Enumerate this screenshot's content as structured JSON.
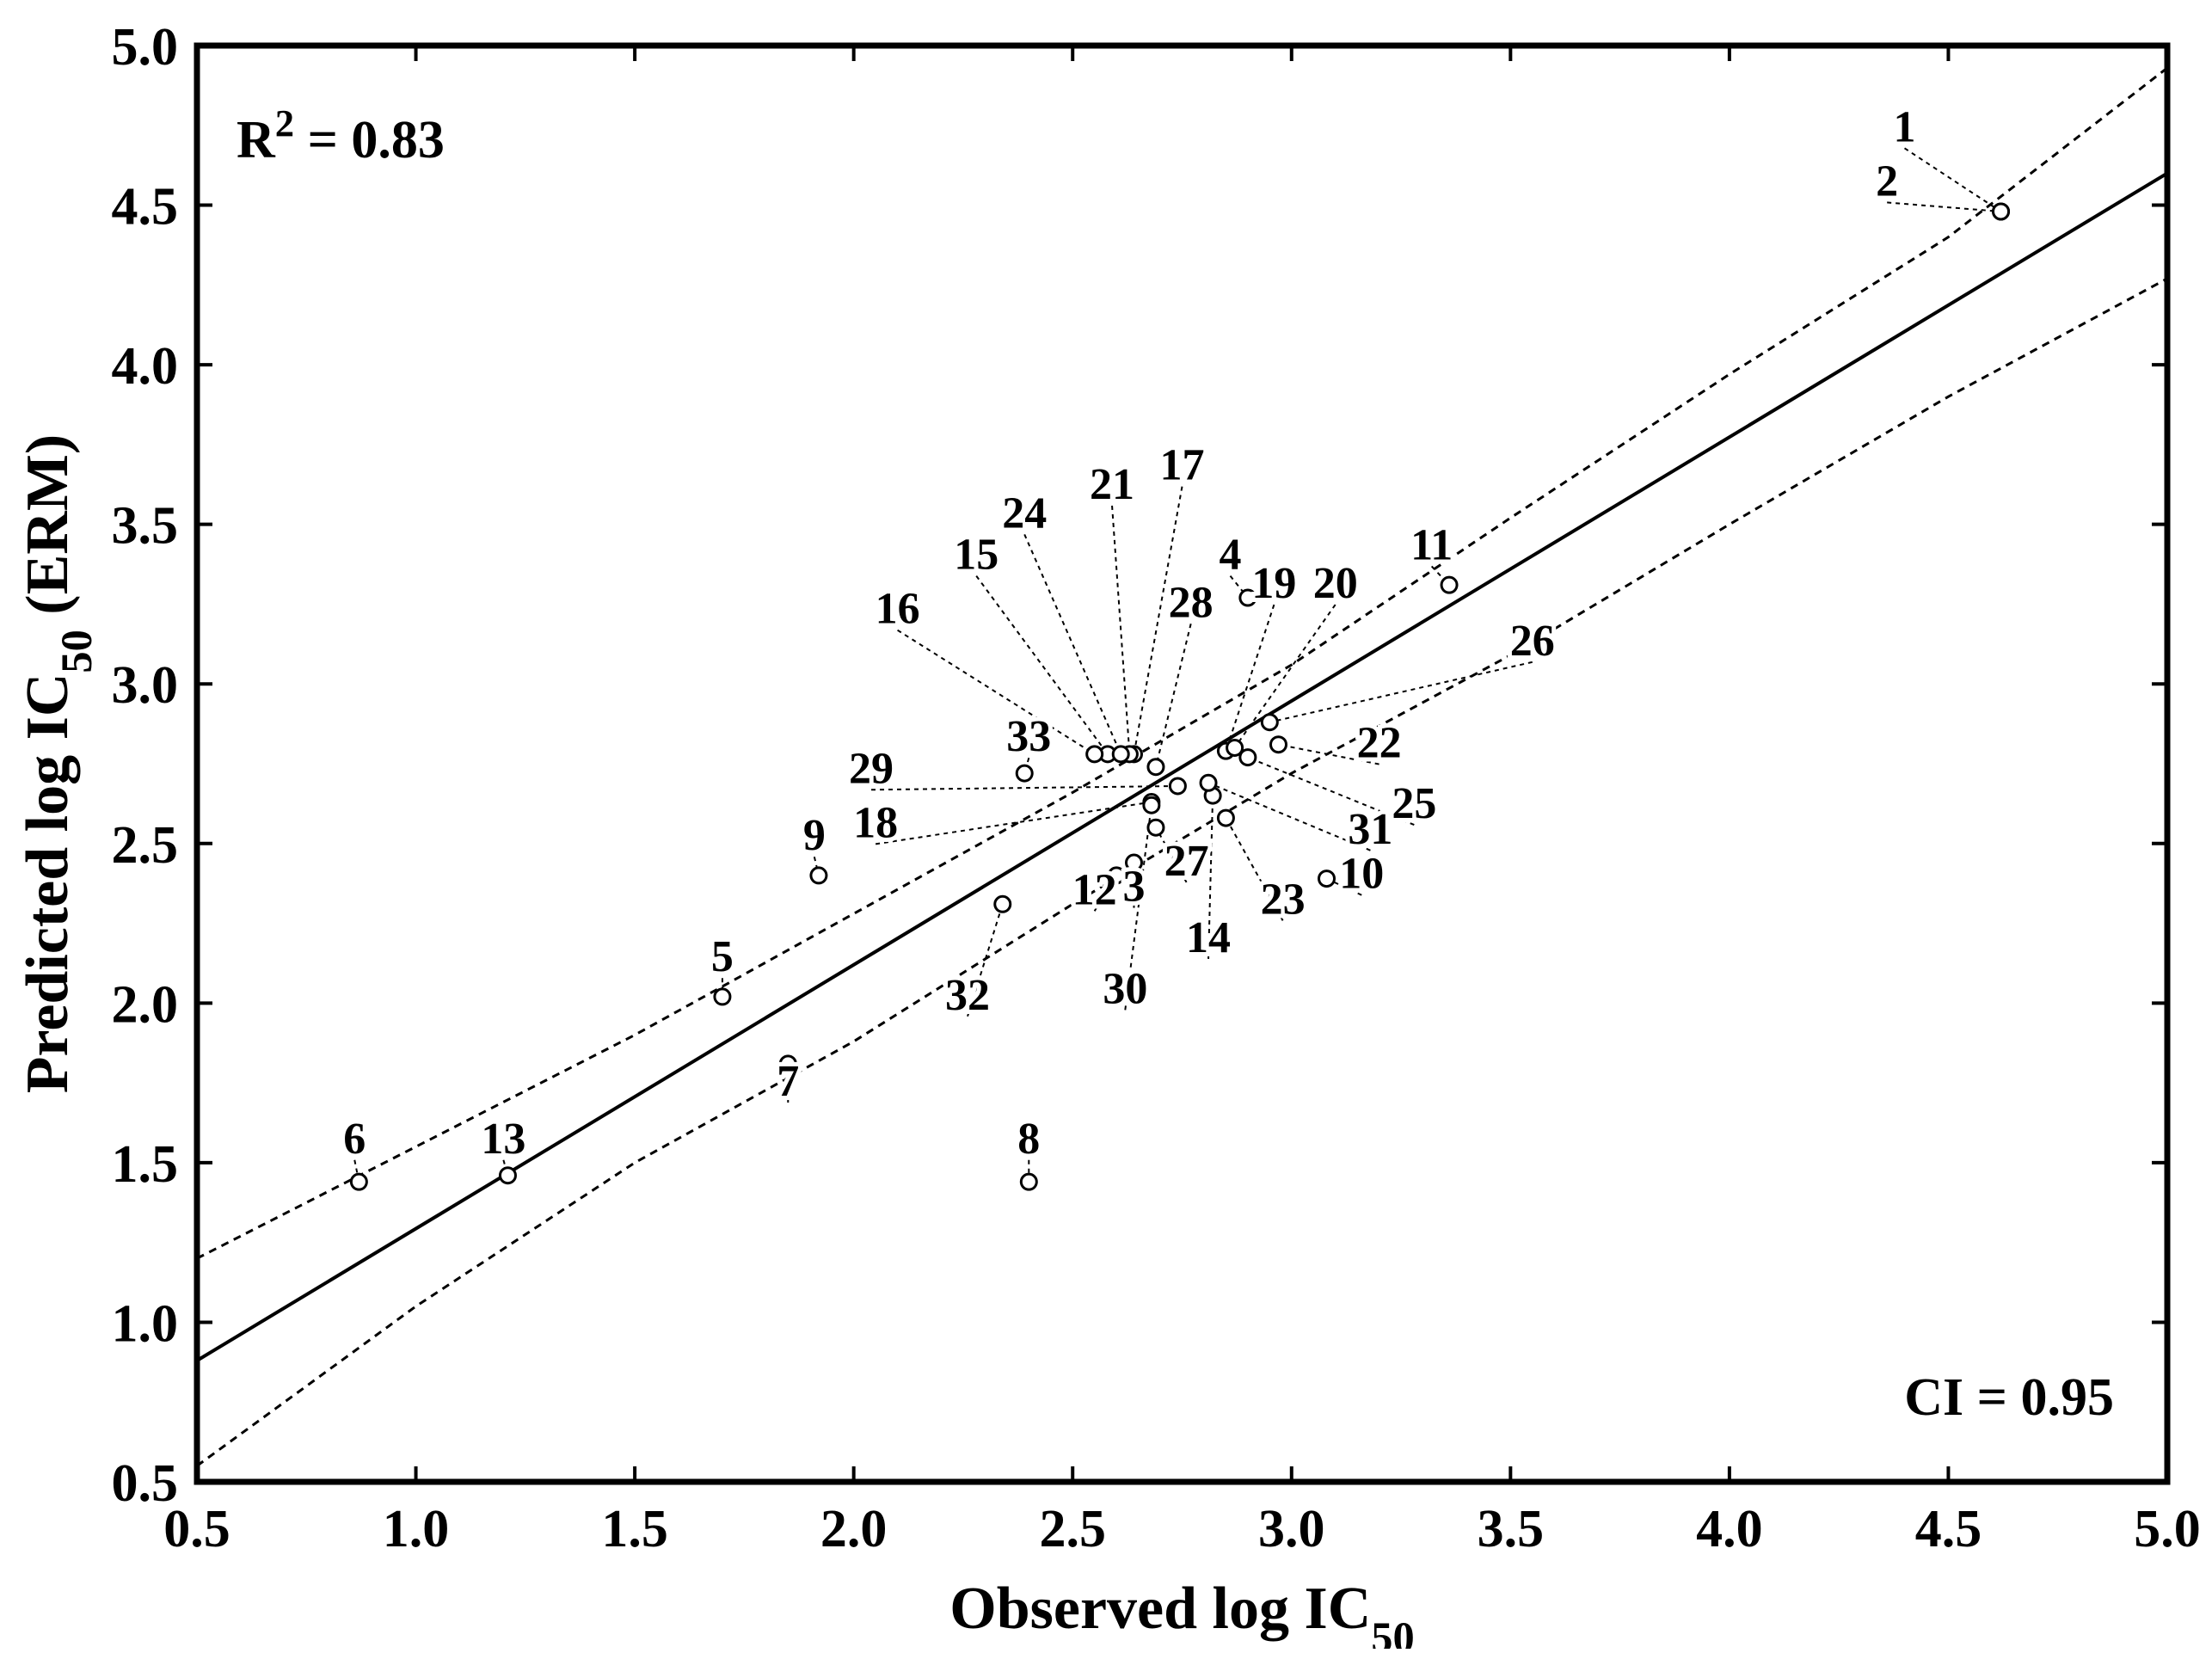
{
  "chart_data": {
    "type": "scatter",
    "title": "",
    "xlabel": "Observed log IC",
    "xlabel_sub": "50",
    "ylabel": "Predicted log IC",
    "ylabel_sub": "50",
    "ylabel_suffix": " (ERM)",
    "xlim": [
      0.5,
      5.0
    ],
    "ylim": [
      0.5,
      5.0
    ],
    "xticks": [
      "0.5",
      "1.0",
      "1.5",
      "2.0",
      "2.5",
      "3.0",
      "3.5",
      "4.0",
      "4.5",
      "5.0"
    ],
    "yticks": [
      "0.5",
      "1.0",
      "1.5",
      "2.0",
      "2.5",
      "3.0",
      "3.5",
      "4.0",
      "4.5",
      "5.0"
    ],
    "r2_prefix": "R",
    "r2_sup": "2",
    "r2_value": " = 0.83",
    "ci_text": "CI = 0.95",
    "regression_line": {
      "x": [
        0.5,
        5.0
      ],
      "y": [
        0.88,
        4.6
      ]
    },
    "ci_upper": {
      "x": [
        0.5,
        1.0,
        1.5,
        2.0,
        2.5,
        3.0,
        3.5,
        4.0,
        4.5,
        5.0
      ],
      "y": [
        1.2,
        1.55,
        1.9,
        2.28,
        2.66,
        3.06,
        3.52,
        3.97,
        4.4,
        4.93
      ]
    },
    "ci_lower": {
      "x": [
        0.5,
        1.0,
        1.5,
        2.0,
        2.5,
        3.0,
        3.5,
        4.0,
        4.5,
        5.0
      ],
      "y": [
        0.55,
        1.05,
        1.5,
        1.88,
        2.31,
        2.72,
        3.09,
        3.5,
        3.9,
        4.27
      ]
    },
    "points": [
      {
        "id": "1",
        "x": 4.62,
        "y": 4.48,
        "lx": 4.4,
        "ly": 4.7
      },
      {
        "id": "2",
        "x": 4.62,
        "y": 4.48,
        "lx": 4.36,
        "ly": 4.53
      },
      {
        "id": "3",
        "x": 2.64,
        "y": 2.44,
        "lx": 2.64,
        "ly": 2.32
      },
      {
        "id": "4",
        "x": 2.9,
        "y": 3.27,
        "lx": 2.86,
        "ly": 3.36
      },
      {
        "id": "5",
        "x": 1.7,
        "y": 2.02,
        "lx": 1.7,
        "ly": 2.1
      },
      {
        "id": "6",
        "x": 0.87,
        "y": 1.44,
        "lx": 0.86,
        "ly": 1.53
      },
      {
        "id": "7",
        "x": 1.85,
        "y": 1.81,
        "lx": 1.85,
        "ly": 1.71
      },
      {
        "id": "8",
        "x": 2.4,
        "y": 1.44,
        "lx": 2.4,
        "ly": 1.53
      },
      {
        "id": "9",
        "x": 1.92,
        "y": 2.4,
        "lx": 1.91,
        "ly": 2.48
      },
      {
        "id": "10",
        "x": 3.08,
        "y": 2.39,
        "lx": 3.16,
        "ly": 2.36
      },
      {
        "id": "11",
        "x": 3.36,
        "y": 3.31,
        "lx": 3.32,
        "ly": 3.39
      },
      {
        "id": "12",
        "x": 2.6,
        "y": 2.4,
        "lx": 2.55,
        "ly": 2.31
      },
      {
        "id": "13",
        "x": 1.21,
        "y": 1.46,
        "lx": 1.2,
        "ly": 1.53
      },
      {
        "id": "14",
        "x": 2.82,
        "y": 2.65,
        "lx": 2.81,
        "ly": 2.16
      },
      {
        "id": "15",
        "x": 2.58,
        "y": 2.78,
        "lx": 2.28,
        "ly": 3.36
      },
      {
        "id": "16",
        "x": 2.55,
        "y": 2.78,
        "lx": 2.1,
        "ly": 3.19
      },
      {
        "id": "17",
        "x": 2.64,
        "y": 2.78,
        "lx": 2.75,
        "ly": 3.64
      },
      {
        "id": "18",
        "x": 2.68,
        "y": 2.63,
        "lx": 2.05,
        "ly": 2.52
      },
      {
        "id": "19",
        "x": 2.85,
        "y": 2.79,
        "lx": 2.96,
        "ly": 3.27
      },
      {
        "id": "20",
        "x": 2.87,
        "y": 2.8,
        "lx": 3.1,
        "ly": 3.27
      },
      {
        "id": "21",
        "x": 2.63,
        "y": 2.78,
        "lx": 2.59,
        "ly": 3.58
      },
      {
        "id": "22",
        "x": 2.97,
        "y": 2.81,
        "lx": 3.2,
        "ly": 2.77
      },
      {
        "id": "23",
        "x": 2.85,
        "y": 2.58,
        "lx": 2.98,
        "ly": 2.28
      },
      {
        "id": "24",
        "x": 2.61,
        "y": 2.78,
        "lx": 2.39,
        "ly": 3.49
      },
      {
        "id": "25",
        "x": 2.9,
        "y": 2.77,
        "lx": 3.28,
        "ly": 2.58
      },
      {
        "id": "26",
        "x": 2.95,
        "y": 2.88,
        "lx": 3.55,
        "ly": 3.09
      },
      {
        "id": "27",
        "x": 2.69,
        "y": 2.55,
        "lx": 2.76,
        "ly": 2.4
      },
      {
        "id": "28",
        "x": 2.69,
        "y": 2.74,
        "lx": 2.77,
        "ly": 3.21
      },
      {
        "id": "29",
        "x": 2.74,
        "y": 2.68,
        "lx": 2.04,
        "ly": 2.69
      },
      {
        "id": "30",
        "x": 2.68,
        "y": 2.62,
        "lx": 2.62,
        "ly": 2.0
      },
      {
        "id": "31",
        "x": 2.81,
        "y": 2.69,
        "lx": 3.18,
        "ly": 2.5
      },
      {
        "id": "32",
        "x": 2.34,
        "y": 2.31,
        "lx": 2.26,
        "ly": 1.98
      },
      {
        "id": "33",
        "x": 2.39,
        "y": 2.72,
        "lx": 2.4,
        "ly": 2.79
      }
    ]
  }
}
